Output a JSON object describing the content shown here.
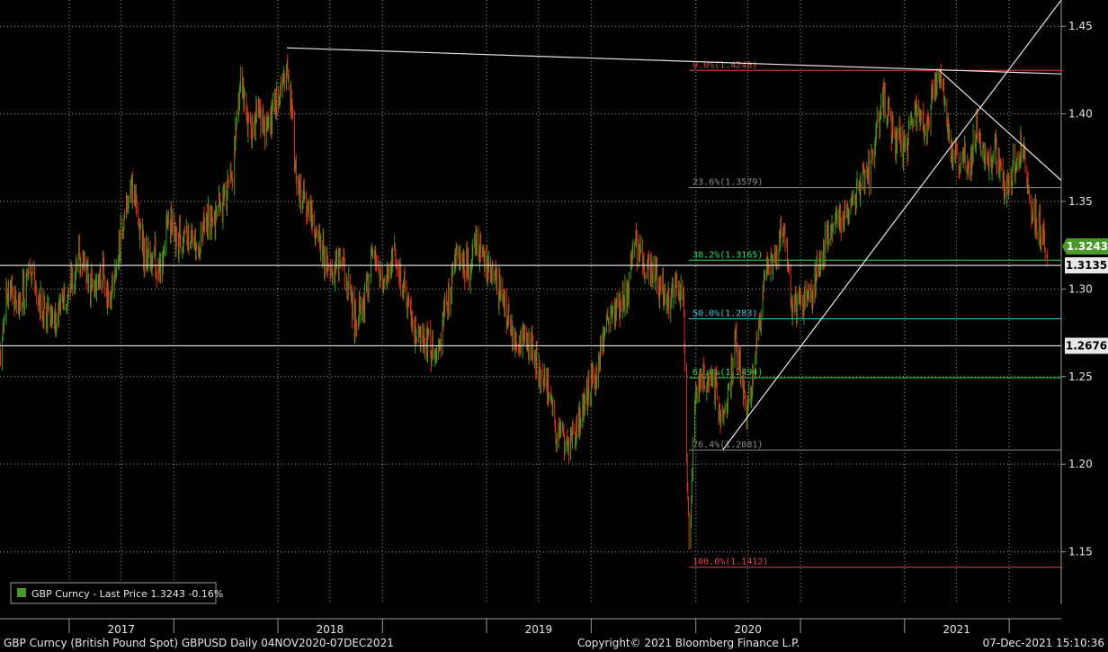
{
  "chart_data": {
    "type": "candlestick",
    "y_axis": {
      "min": 1.12,
      "max": 1.465,
      "ticks": [
        1.15,
        1.2,
        1.25,
        1.3,
        1.35,
        1.4,
        1.45
      ],
      "side": "right"
    },
    "x_axis": {
      "start": "2016-12-01",
      "end": "2021-12-31",
      "year_labels": [
        {
          "label": "2017",
          "date": "2017-07-01"
        },
        {
          "label": "2018",
          "date": "2018-07-01"
        },
        {
          "label": "2019",
          "date": "2019-07-01"
        },
        {
          "label": "2020",
          "date": "2020-07-01"
        },
        {
          "label": "2021",
          "date": "2021-07-01"
        }
      ],
      "quarter_ticks": [
        "2017-04-01",
        "2017-10-01",
        "2018-04-01",
        "2018-10-01",
        "2019-04-01",
        "2019-10-01",
        "2020-04-01",
        "2020-10-01",
        "2021-04-01",
        "2021-10-01"
      ]
    },
    "series": {
      "up_color": "#3c9a1c",
      "down_color": "#e0301e",
      "anchors": [
        [
          "2016-12-01",
          1.265
        ],
        [
          "2016-12-15",
          1.3
        ],
        [
          "2017-01-05",
          1.29
        ],
        [
          "2017-01-20",
          1.31
        ],
        [
          "2017-02-10",
          1.29
        ],
        [
          "2017-03-10",
          1.28
        ],
        [
          "2017-03-31",
          1.3
        ],
        [
          "2017-04-20",
          1.32
        ],
        [
          "2017-05-10",
          1.3
        ],
        [
          "2017-05-31",
          1.31
        ],
        [
          "2017-06-10",
          1.29
        ],
        [
          "2017-06-30",
          1.33
        ],
        [
          "2017-07-20",
          1.36
        ],
        [
          "2017-08-10",
          1.32
        ],
        [
          "2017-08-25",
          1.32
        ],
        [
          "2017-09-08",
          1.31
        ],
        [
          "2017-09-20",
          1.34
        ],
        [
          "2017-10-05",
          1.33
        ],
        [
          "2017-10-20",
          1.33
        ],
        [
          "2017-11-10",
          1.32
        ],
        [
          "2017-11-25",
          1.34
        ],
        [
          "2017-12-15",
          1.34
        ],
        [
          "2018-01-10",
          1.36
        ],
        [
          "2018-01-25",
          1.42
        ],
        [
          "2018-02-10",
          1.39
        ],
        [
          "2018-02-25",
          1.4
        ],
        [
          "2018-03-10",
          1.39
        ],
        [
          "2018-03-31",
          1.41
        ],
        [
          "2018-04-17",
          1.43
        ],
        [
          "2018-05-05",
          1.36
        ],
        [
          "2018-05-31",
          1.34
        ],
        [
          "2018-06-30",
          1.31
        ],
        [
          "2018-07-20",
          1.32
        ],
        [
          "2018-08-15",
          1.28
        ],
        [
          "2018-08-30",
          1.29
        ],
        [
          "2018-09-15",
          1.32
        ],
        [
          "2018-10-05",
          1.3
        ],
        [
          "2018-10-20",
          1.32
        ],
        [
          "2018-11-05",
          1.3
        ],
        [
          "2018-11-25",
          1.28
        ],
        [
          "2018-12-20",
          1.27
        ],
        [
          "2019-01-05",
          1.26
        ],
        [
          "2019-01-25",
          1.3
        ],
        [
          "2019-02-10",
          1.32
        ],
        [
          "2019-03-01",
          1.31
        ],
        [
          "2019-03-15",
          1.33
        ],
        [
          "2019-04-05",
          1.31
        ],
        [
          "2019-04-25",
          1.3
        ],
        [
          "2019-05-20",
          1.27
        ],
        [
          "2019-06-15",
          1.27
        ],
        [
          "2019-07-10",
          1.25
        ],
        [
          "2019-08-01",
          1.22
        ],
        [
          "2019-08-20",
          1.21
        ],
        [
          "2019-09-05",
          1.22
        ],
        [
          "2019-09-25",
          1.24
        ],
        [
          "2019-10-10",
          1.25
        ],
        [
          "2019-10-25",
          1.28
        ],
        [
          "2019-11-15",
          1.29
        ],
        [
          "2019-12-05",
          1.3
        ],
        [
          "2019-12-15",
          1.33
        ],
        [
          "2020-01-01",
          1.31
        ],
        [
          "2020-01-20",
          1.31
        ],
        [
          "2020-02-10",
          1.29
        ],
        [
          "2020-02-25",
          1.3
        ],
        [
          "2020-03-10",
          1.3
        ],
        [
          "2020-03-20",
          1.15
        ],
        [
          "2020-03-31",
          1.24
        ],
        [
          "2020-04-15",
          1.25
        ],
        [
          "2020-05-01",
          1.25
        ],
        [
          "2020-05-20",
          1.22
        ],
        [
          "2020-06-10",
          1.27
        ],
        [
          "2020-06-30",
          1.23
        ],
        [
          "2020-07-15",
          1.26
        ],
        [
          "2020-07-31",
          1.31
        ],
        [
          "2020-08-20",
          1.32
        ],
        [
          "2020-09-01",
          1.34
        ],
        [
          "2020-09-15",
          1.29
        ],
        [
          "2020-10-01",
          1.29
        ],
        [
          "2020-10-20",
          1.3
        ],
        [
          "2020-11-10",
          1.32
        ],
        [
          "2020-12-01",
          1.34
        ],
        [
          "2020-12-20",
          1.34
        ],
        [
          "2021-01-10",
          1.36
        ],
        [
          "2021-02-01",
          1.37
        ],
        [
          "2021-02-24",
          1.41
        ],
        [
          "2021-03-10",
          1.39
        ],
        [
          "2021-04-01",
          1.38
        ],
        [
          "2021-04-20",
          1.4
        ],
        [
          "2021-05-10",
          1.39
        ],
        [
          "2021-05-25",
          1.42
        ],
        [
          "2021-06-05",
          1.42
        ],
        [
          "2021-06-20",
          1.38
        ],
        [
          "2021-07-20",
          1.37
        ],
        [
          "2021-08-05",
          1.39
        ],
        [
          "2021-08-20",
          1.37
        ],
        [
          "2021-09-05",
          1.38
        ],
        [
          "2021-09-25",
          1.36
        ],
        [
          "2021-10-10",
          1.37
        ],
        [
          "2021-10-25",
          1.38
        ],
        [
          "2021-11-10",
          1.34
        ],
        [
          "2021-11-25",
          1.335
        ],
        [
          "2021-12-07",
          1.3243
        ]
      ]
    },
    "fibonacci": [
      {
        "label": "0.0%(1.4248)",
        "value": 1.4248,
        "color": "#e04848"
      },
      {
        "label": "23.6%(1.3579)",
        "value": 1.3579,
        "color": "#8c8c8c"
      },
      {
        "label": "38.2%(1.3165)",
        "value": 1.3165,
        "color": "#33dd55"
      },
      {
        "label": "50.0%(1.283)",
        "value": 1.283,
        "color": "#33cccc"
      },
      {
        "label": "61.8%(1.2494)",
        "value": 1.2494,
        "color": "#33dd55"
      },
      {
        "label": "76.4%(1.2081)",
        "value": 1.2081,
        "color": "#8c8c8c"
      },
      {
        "label": "100.0%(1.1412)",
        "value": 1.1412,
        "color": "#e04848"
      }
    ],
    "fib_start_date": "2020-03-20",
    "horizontal_levels": [
      {
        "label": "1.3135",
        "value": 1.3135
      },
      {
        "label": "1.2676",
        "value": 1.2676
      }
    ],
    "trendlines": [
      {
        "from": [
          "2018-04-17",
          1.4377
        ],
        "to": [
          "2021-12-31",
          1.4228
        ]
      },
      {
        "from": [
          "2020-05-18",
          1.2081
        ],
        "to": [
          "2021-12-31",
          1.465
        ]
      },
      {
        "from": [
          "2021-06-01",
          1.4248
        ],
        "to": [
          "2021-12-31",
          1.362
        ]
      }
    ],
    "last_price": {
      "label": "1.3243",
      "value": 1.3243,
      "color": "#4a9a2a"
    },
    "legend": {
      "text": "GBP Curncy - Last Price  1.3243  -0.16%",
      "swatch_color": "#4a9a2a"
    }
  },
  "footer": {
    "left": "GBP Curncy (British Pound Spot) GBPUSD  Daily 04NOV2020-07DEC2021",
    "center": "Copyright© 2021 Bloomberg Finance L.P.",
    "right": "07-Dec-2021 15:10:36"
  }
}
